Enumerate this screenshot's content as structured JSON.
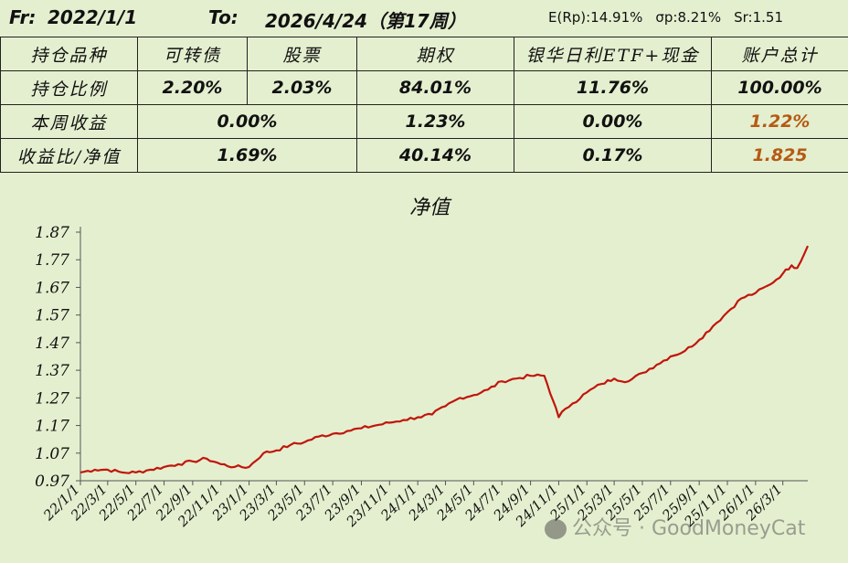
{
  "header": {
    "from_label": "Fr:",
    "from_date": "2022/1/1",
    "to_label": "To:",
    "to_date": "2026/4/24（第17周）",
    "er": "E(Rp):14.91%",
    "sigma": "σp:8.21%",
    "sr": "Sr:1.51"
  },
  "table": {
    "headers": [
      "持仓品种",
      "可转债",
      "股票",
      "期权",
      "银华日利ETF+现金",
      "账户总计"
    ],
    "position_ratio": {
      "label": "持仓比例",
      "values": [
        "2.20%",
        "2.03%",
        "84.01%",
        "11.76%",
        "100.00%"
      ]
    },
    "weekly_return": {
      "label": "本周收益",
      "values": [
        "0.00%",
        "1.23%",
        "0.00%",
        "1.22%"
      ]
    },
    "ratio_nav": {
      "label": "收益比/净值",
      "values": [
        "1.69%",
        "40.14%",
        "0.17%",
        "1.825"
      ]
    }
  },
  "colors": {
    "accent_orange": "#b55a14",
    "line": "#c0160c",
    "background": "#e4efcf"
  },
  "chart_data": {
    "type": "line",
    "title": "净值",
    "xlabel": "",
    "ylabel": "",
    "ylim": [
      0.97,
      1.87
    ],
    "yticks": [
      "0.97",
      "1.07",
      "1.17",
      "1.27",
      "1.37",
      "1.47",
      "1.57",
      "1.67",
      "1.77",
      "1.87"
    ],
    "xticks": [
      "22/1/1",
      "22/3/1",
      "22/5/1",
      "22/7/1",
      "22/9/1",
      "22/11/1",
      "23/1/1",
      "23/3/1",
      "23/5/1",
      "23/7/1",
      "23/9/1",
      "23/11/1",
      "24/1/1",
      "24/3/1",
      "24/5/1",
      "24/7/1",
      "24/9/1",
      "24/11/1",
      "25/1/1",
      "25/3/1",
      "25/5/1",
      "25/7/1",
      "25/9/1",
      "25/11/1",
      "26/1/1",
      "26/3/1"
    ],
    "grid": false,
    "series": [
      {
        "x": [
          "2022-01-01",
          "2022-02-01",
          "2022-03-01",
          "2022-04-01",
          "2022-05-01",
          "2022-06-01",
          "2022-07-01",
          "2022-08-01",
          "2022-09-01",
          "2022-10-01",
          "2022-11-01",
          "2022-12-01",
          "2023-01-01",
          "2023-02-01",
          "2023-03-01",
          "2023-04-01",
          "2023-05-01",
          "2023-06-01",
          "2023-07-01",
          "2023-08-01",
          "2023-09-01",
          "2023-10-01",
          "2023-11-01",
          "2023-12-01",
          "2024-01-01",
          "2024-02-01",
          "2024-03-01",
          "2024-04-01",
          "2024-05-01",
          "2024-06-01",
          "2024-07-01",
          "2024-08-01",
          "2024-09-01",
          "2024-10-01",
          "2024-10-20",
          "2024-11-01",
          "2024-11-15",
          "2024-12-01",
          "2025-01-01",
          "2025-02-01",
          "2025-03-01",
          "2025-04-01",
          "2025-05-01",
          "2025-06-01",
          "2025-07-01",
          "2025-08-01",
          "2025-09-01",
          "2025-10-01",
          "2025-11-01",
          "2025-12-01",
          "2026-01-01",
          "2026-02-01",
          "2026-03-01",
          "2026-03-20",
          "2026-04-01",
          "2026-04-24"
        ],
        "values": [
          1.0,
          1.01,
          1.01,
          1.0,
          1.0,
          1.01,
          1.02,
          1.03,
          1.04,
          1.05,
          1.03,
          1.02,
          1.02,
          1.07,
          1.08,
          1.1,
          1.11,
          1.13,
          1.14,
          1.15,
          1.16,
          1.17,
          1.18,
          1.19,
          1.2,
          1.21,
          1.24,
          1.27,
          1.28,
          1.3,
          1.33,
          1.34,
          1.35,
          1.35,
          1.26,
          1.2,
          1.23,
          1.25,
          1.29,
          1.32,
          1.34,
          1.33,
          1.36,
          1.39,
          1.42,
          1.44,
          1.48,
          1.53,
          1.58,
          1.63,
          1.65,
          1.68,
          1.72,
          1.75,
          1.74,
          1.82
        ]
      }
    ]
  },
  "watermark": "公众号 · GoodMoneyCat"
}
